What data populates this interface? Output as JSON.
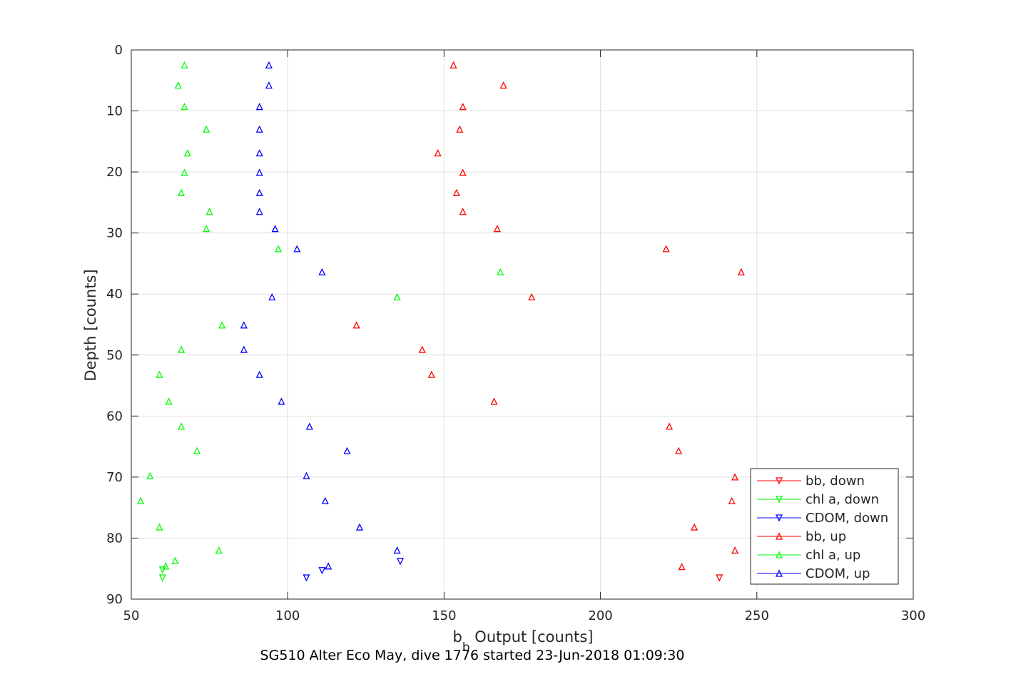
{
  "chart_data": {
    "type": "scatter",
    "xlabel": {
      "main": "b",
      "sub": "b",
      "rest": " Output [counts]"
    },
    "ylabel": "Depth [counts]",
    "caption": "SG510 Alter Eco May, dive 1776 started 23-Jun-2018 01:09:30",
    "xlim": [
      50,
      300
    ],
    "ylim": [
      0,
      90
    ],
    "y_reversed": true,
    "grid": true,
    "legend_position": "bottom-right",
    "x_ticks": [
      "50",
      "100",
      "150",
      "200",
      "250",
      "300"
    ],
    "y_ticks": [
      "0",
      "10",
      "20",
      "30",
      "40",
      "50",
      "60",
      "70",
      "80",
      "90"
    ],
    "series": [
      {
        "name": "bb, down",
        "color": "#ff0000",
        "marker": "triangle-down",
        "points": [
          [
            238,
            86.5
          ]
        ]
      },
      {
        "name": "chl a, down",
        "color": "#00ff00",
        "marker": "triangle-down",
        "points": [
          [
            60,
            85.2
          ],
          [
            60,
            86.5
          ]
        ]
      },
      {
        "name": "CDOM, down",
        "color": "#0000ff",
        "marker": "triangle-down",
        "points": [
          [
            136,
            83.8
          ],
          [
            111,
            85.3
          ],
          [
            106,
            86.5
          ]
        ]
      },
      {
        "name": "bb, up",
        "color": "#ff0000",
        "marker": "triangle-up",
        "points": [
          [
            153,
            2.5
          ],
          [
            169,
            5.8
          ],
          [
            156,
            9.3
          ],
          [
            155,
            13.0
          ],
          [
            148,
            16.9
          ],
          [
            156,
            20.1
          ],
          [
            154,
            23.4
          ],
          [
            156,
            26.5
          ],
          [
            167,
            29.3
          ],
          [
            221,
            32.6
          ],
          [
            245,
            36.4
          ],
          [
            178,
            40.5
          ],
          [
            122,
            45.1
          ],
          [
            143,
            49.1
          ],
          [
            146,
            53.2
          ],
          [
            166,
            57.6
          ],
          [
            222,
            61.7
          ],
          [
            225,
            65.7
          ],
          [
            243,
            70.0
          ],
          [
            242,
            73.9
          ],
          [
            230,
            78.2
          ],
          [
            243,
            82.0
          ],
          [
            226,
            84.7
          ]
        ]
      },
      {
        "name": "chl a, up",
        "color": "#00ff00",
        "marker": "triangle-up",
        "points": [
          [
            67,
            2.5
          ],
          [
            65,
            5.8
          ],
          [
            67,
            9.3
          ],
          [
            74,
            13.0
          ],
          [
            68,
            16.9
          ],
          [
            67,
            20.1
          ],
          [
            66,
            23.4
          ],
          [
            75,
            26.5
          ],
          [
            74,
            29.3
          ],
          [
            97,
            32.6
          ],
          [
            168,
            36.4
          ],
          [
            135,
            40.5
          ],
          [
            79,
            45.1
          ],
          [
            66,
            49.1
          ],
          [
            59,
            53.2
          ],
          [
            62,
            57.6
          ],
          [
            66,
            61.7
          ],
          [
            71,
            65.7
          ],
          [
            56,
            69.8
          ],
          [
            53,
            73.9
          ],
          [
            59,
            78.2
          ],
          [
            78,
            82.0
          ],
          [
            64,
            83.7
          ],
          [
            61,
            84.6
          ]
        ]
      },
      {
        "name": "CDOM, up",
        "color": "#0000ff",
        "marker": "triangle-up",
        "points": [
          [
            94,
            2.5
          ],
          [
            94,
            5.8
          ],
          [
            91,
            9.3
          ],
          [
            91,
            13.0
          ],
          [
            91,
            16.9
          ],
          [
            91,
            20.1
          ],
          [
            91,
            23.4
          ],
          [
            91,
            26.5
          ],
          [
            96,
            29.3
          ],
          [
            103,
            32.6
          ],
          [
            111,
            36.4
          ],
          [
            95,
            40.5
          ],
          [
            86,
            45.1
          ],
          [
            86,
            49.1
          ],
          [
            91,
            53.2
          ],
          [
            98,
            57.6
          ],
          [
            107,
            61.7
          ],
          [
            119,
            65.7
          ],
          [
            106,
            69.8
          ],
          [
            112,
            73.9
          ],
          [
            123,
            78.2
          ],
          [
            135,
            82.0
          ],
          [
            113,
            84.6
          ]
        ]
      }
    ]
  }
}
